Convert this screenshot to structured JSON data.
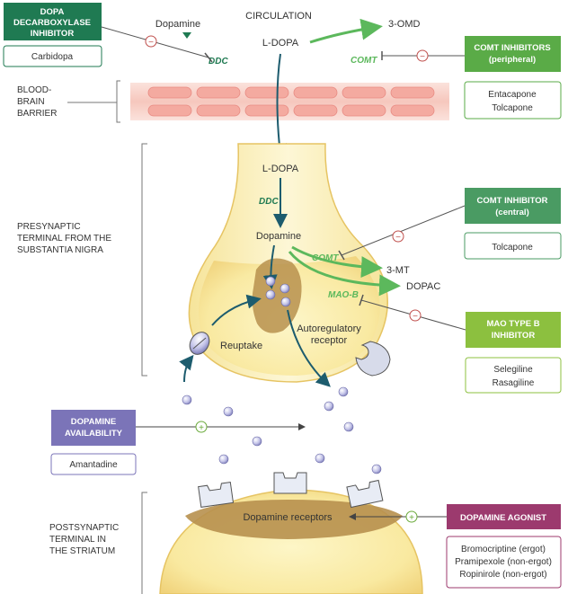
{
  "circulation": {
    "label": "CIRCULATION",
    "ldopa": "L-DOPA",
    "dopamine": "Dopamine",
    "ddc": "DDC",
    "comt": "COMT",
    "omd": "3-OMD"
  },
  "bbb": {
    "line1": "BLOOD-",
    "line2": "BRAIN",
    "line3": "BARRIER"
  },
  "presynaptic": {
    "line1": "PRESYNAPTIC",
    "line2": "TERMINAL FROM THE",
    "line3": "SUBSTANTIA NIGRA",
    "ldopa": "L-DOPA",
    "ddc": "DDC",
    "dopamine": "Dopamine",
    "comt": "COMT",
    "mt": "3-MT",
    "maob": "MAO-B",
    "dopac": "DOPAC",
    "reuptake": "Reuptake",
    "autoreg1": "Autoregulatory",
    "autoreg2": "receptor"
  },
  "postsynaptic": {
    "line1": "POSTSYNAPTIC",
    "line2": "TERMINAL IN",
    "line3": "THE STRIATUM",
    "receptors": "Dopamine receptors"
  },
  "boxes": {
    "ddc_inhibitor": {
      "title1": "DOPA",
      "title2": "DECARBOXYLASE",
      "title3": "INHIBITOR",
      "drug": "Carbidopa",
      "color": "#1f7a52"
    },
    "comt_peripheral": {
      "title1": "COMT INHIBITORS",
      "title2": "(peripheral)",
      "drug1": "Entacapone",
      "drug2": "Tolcapone",
      "color": "#5aab47"
    },
    "comt_central": {
      "title1": "COMT INHIBITOR",
      "title2": "(central)",
      "drug1": "Tolcapone",
      "color": "#4a9b63"
    },
    "mao_b": {
      "title1": "MAO TYPE B",
      "title2": "INHIBITOR",
      "drug1": "Selegiline",
      "drug2": "Rasagiline",
      "color": "#8cc03f"
    },
    "availability": {
      "title1": "DOPAMINE",
      "title2": "AVAILABILITY",
      "drug1": "Amantadine",
      "color": "#7b74b8"
    },
    "agonist": {
      "title1": "DOPAMINE AGONIST",
      "drug1": "Bromocriptine (ergot)",
      "drug2": "Pramipexole (non-ergot)",
      "drug3": "Ropinirole (non-ergot)",
      "color": "#9c3a6e"
    }
  },
  "symbols": {
    "minus": "−",
    "plus": "+"
  },
  "colors": {
    "green_arrow": "#5cb85c",
    "dark_teal": "#1d5c6e",
    "minus_circle": "#c0504d",
    "plus_circle": "#6aaa3a"
  }
}
